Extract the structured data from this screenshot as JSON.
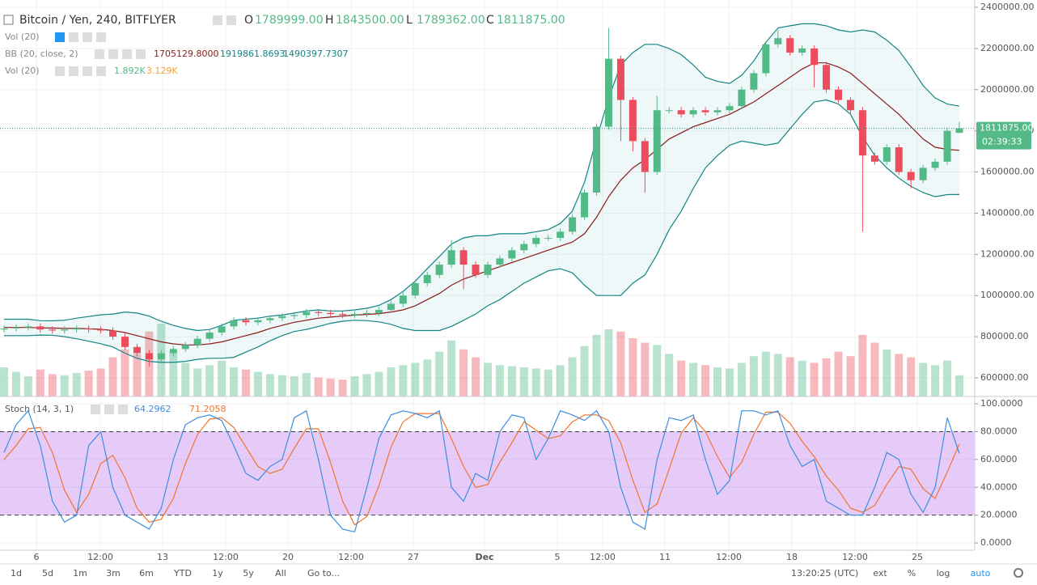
{
  "chart_data": {
    "type": "candlestick",
    "title": "Bitcoin / Yen, 240, BITFLYER",
    "legend": [
      [
        "O",
        "1789999.00"
      ],
      [
        "H",
        "1843500.00"
      ],
      [
        "L",
        "1789362.00"
      ],
      [
        "C",
        "1811875.00"
      ]
    ],
    "indicators": [
      {
        "name": "Vol (20)"
      },
      {
        "name": "BB (20, close, 2)",
        "values": [
          "1705129.8000",
          "1919861.8693",
          "1490397.7307"
        ]
      },
      {
        "name": "Vol (20)",
        "values": [
          "1.892K",
          "3.129K"
        ]
      }
    ],
    "colors": {
      "up": "#53b987",
      "down": "#eb4d5c",
      "bb": "#138484",
      "basis": "#8b1a1a"
    },
    "open": [
      835000,
      840000,
      845000,
      850000,
      835000,
      830000,
      835000,
      840000,
      835000,
      830000,
      800000,
      750000,
      720000,
      690000,
      720000,
      740000,
      760000,
      790000,
      820000,
      850000,
      880000,
      870000,
      880000,
      890000,
      900000,
      905000,
      920000,
      915000,
      910000,
      905000,
      910000,
      915000,
      930000,
      960000,
      1000000,
      1060000,
      1100000,
      1150000,
      1220000,
      1150000,
      1100000,
      1150000,
      1180000,
      1220000,
      1250000,
      1280000,
      1280000,
      1310000,
      1380000,
      1500000,
      1820000,
      2150000,
      1950000,
      1750000,
      1600000,
      1900000,
      1900000,
      1880000,
      1900000,
      1890000,
      1900000,
      1920000,
      2000000,
      2080000,
      2220000,
      2250000,
      2180000,
      2200000,
      2120000,
      2000000,
      1950000,
      1900000,
      1680000,
      1650000,
      1720000,
      1600000,
      1560000,
      1620000,
      1650000,
      1789999
    ],
    "high": [
      855000,
      860000,
      865000,
      865000,
      850000,
      850000,
      855000,
      855000,
      850000,
      845000,
      815000,
      765000,
      735000,
      735000,
      755000,
      775000,
      805000,
      835000,
      865000,
      895000,
      895000,
      895000,
      905000,
      915000,
      920000,
      935000,
      935000,
      930000,
      925000,
      925000,
      930000,
      945000,
      975000,
      1015000,
      1075000,
      1115000,
      1165000,
      1270000,
      1235000,
      1165000,
      1165000,
      1195000,
      1235000,
      1265000,
      1295000,
      1295000,
      1325000,
      1395000,
      1515000,
      1835000,
      2300000,
      2165000,
      1965000,
      1765000,
      1970000,
      1915000,
      1915000,
      1915000,
      1915000,
      1915000,
      1935000,
      2015000,
      2095000,
      2235000,
      2290000,
      2265000,
      2215000,
      2215000,
      2135000,
      2015000,
      1965000,
      1915000,
      1695000,
      1735000,
      1735000,
      1615000,
      1635000,
      1665000,
      1815000,
      1843500
    ],
    "low": [
      820000,
      825000,
      830000,
      820000,
      815000,
      815000,
      820000,
      820000,
      815000,
      785000,
      735000,
      705000,
      655000,
      675000,
      705000,
      725000,
      745000,
      775000,
      805000,
      835000,
      855000,
      855000,
      865000,
      875000,
      885000,
      890000,
      900000,
      895000,
      890000,
      890000,
      895000,
      900000,
      915000,
      945000,
      985000,
      1045000,
      1085000,
      1135000,
      1030000,
      1085000,
      1085000,
      1135000,
      1165000,
      1205000,
      1235000,
      1265000,
      1265000,
      1295000,
      1365000,
      1485000,
      1805000,
      1750000,
      1700000,
      1500000,
      1585000,
      1885000,
      1865000,
      1865000,
      1875000,
      1875000,
      1885000,
      1905000,
      1985000,
      2065000,
      2205000,
      2165000,
      2165000,
      2010000,
      1985000,
      1935000,
      1885000,
      1310000,
      1635000,
      1635000,
      1585000,
      1520000,
      1545000,
      1605000,
      1635000,
      1789362
    ],
    "close": [
      840000,
      845000,
      850000,
      835000,
      830000,
      835000,
      840000,
      835000,
      830000,
      800000,
      750000,
      720000,
      690000,
      720000,
      740000,
      760000,
      790000,
      820000,
      850000,
      880000,
      870000,
      880000,
      890000,
      900000,
      905000,
      920000,
      915000,
      910000,
      905000,
      910000,
      915000,
      930000,
      960000,
      1000000,
      1060000,
      1100000,
      1150000,
      1220000,
      1150000,
      1100000,
      1150000,
      1180000,
      1220000,
      1250000,
      1280000,
      1280000,
      1310000,
      1380000,
      1500000,
      1820000,
      2150000,
      1950000,
      1750000,
      1600000,
      1900000,
      1900000,
      1880000,
      1900000,
      1890000,
      1900000,
      1920000,
      2000000,
      2080000,
      2220000,
      2250000,
      2180000,
      2200000,
      2120000,
      2000000,
      1950000,
      1900000,
      1680000,
      1650000,
      1720000,
      1600000,
      1560000,
      1620000,
      1650000,
      1800000,
      1811875
    ],
    "bb": {
      "upper": [
        885000,
        885000,
        885000,
        878000,
        877000,
        880000,
        890000,
        898000,
        906000,
        910000,
        920000,
        915000,
        900000,
        875000,
        855000,
        840000,
        830000,
        835000,
        855000,
        880000,
        885000,
        890000,
        900000,
        905000,
        915000,
        925000,
        930000,
        925000,
        925000,
        930000,
        938000,
        952000,
        980000,
        1020000,
        1070000,
        1130000,
        1190000,
        1250000,
        1280000,
        1290000,
        1290000,
        1300000,
        1300000,
        1300000,
        1310000,
        1320000,
        1350000,
        1410000,
        1550000,
        1760000,
        1960000,
        2120000,
        2180000,
        2220000,
        2220000,
        2200000,
        2170000,
        2120000,
        2060000,
        2040000,
        2030000,
        2070000,
        2140000,
        2230000,
        2300000,
        2310000,
        2320000,
        2320000,
        2310000,
        2290000,
        2280000,
        2290000,
        2280000,
        2240000,
        2190000,
        2110000,
        2020000,
        1960000,
        1930000,
        1919861.8693
      ],
      "middle": [
        845000,
        845000,
        845000,
        843000,
        842000,
        840000,
        840000,
        838000,
        836000,
        830000,
        820000,
        805000,
        790000,
        775000,
        765000,
        760000,
        760000,
        765000,
        775000,
        790000,
        805000,
        820000,
        840000,
        855000,
        870000,
        880000,
        890000,
        895000,
        900000,
        905000,
        908000,
        912000,
        920000,
        930000,
        950000,
        980000,
        1010000,
        1050000,
        1080000,
        1100000,
        1120000,
        1140000,
        1160000,
        1180000,
        1200000,
        1220000,
        1240000,
        1260000,
        1300000,
        1380000,
        1480000,
        1560000,
        1620000,
        1660000,
        1710000,
        1760000,
        1790000,
        1820000,
        1840000,
        1860000,
        1880000,
        1910000,
        1940000,
        1980000,
        2020000,
        2060000,
        2100000,
        2130000,
        2130000,
        2110000,
        2080000,
        2030000,
        1980000,
        1930000,
        1880000,
        1820000,
        1760000,
        1720000,
        1710000,
        1705129.8
      ],
      "lower": [
        805000,
        805000,
        805000,
        808000,
        807000,
        800000,
        790000,
        778000,
        766000,
        750000,
        720000,
        695000,
        680000,
        675000,
        675000,
        680000,
        690000,
        695000,
        695000,
        700000,
        725000,
        750000,
        780000,
        805000,
        825000,
        835000,
        850000,
        865000,
        875000,
        880000,
        878000,
        872000,
        860000,
        840000,
        830000,
        830000,
        830000,
        850000,
        880000,
        910000,
        950000,
        980000,
        1020000,
        1060000,
        1090000,
        1120000,
        1130000,
        1110000,
        1050000,
        1000000,
        1000000,
        1000000,
        1060000,
        1100000,
        1200000,
        1320000,
        1410000,
        1520000,
        1620000,
        1680000,
        1730000,
        1750000,
        1740000,
        1730000,
        1740000,
        1810000,
        1880000,
        1940000,
        1950000,
        1930000,
        1880000,
        1770000,
        1680000,
        1620000,
        1570000,
        1530000,
        1500000,
        1480000,
        1490000,
        1490397.7307
      ]
    },
    "volume": [
      2600,
      2200,
      1800,
      2400,
      2000,
      1900,
      2100,
      2300,
      2500,
      3500,
      4200,
      3800,
      5800,
      6500,
      4000,
      3000,
      2500,
      2800,
      3200,
      2600,
      2400,
      2200,
      2000,
      1900,
      1800,
      2100,
      1700,
      1600,
      1500,
      1800,
      2000,
      2200,
      2600,
      2800,
      3000,
      3300,
      4000,
      5000,
      4200,
      3500,
      3000,
      2800,
      2700,
      2600,
      2500,
      2400,
      2800,
      3500,
      4500,
      5500,
      6000,
      5800,
      5200,
      4800,
      4600,
      3800,
      3200,
      3000,
      2800,
      2600,
      2500,
      3000,
      3600,
      4000,
      3800,
      3500,
      3200,
      3000,
      3400,
      4000,
      3600,
      5500,
      4800,
      4200,
      3800,
      3500,
      3000,
      2800,
      3200,
      1892
    ],
    "ylim": [
      509600,
      2435400
    ],
    "yticks": [
      {
        "value": 600000,
        "label": "600000.00"
      },
      {
        "value": 800000,
        "label": "800000.00"
      },
      {
        "value": 1000000,
        "label": "1000000.00"
      },
      {
        "value": 1200000,
        "label": "1200000.00"
      },
      {
        "value": 1400000,
        "label": "1400000.00"
      },
      {
        "value": 1600000,
        "label": "1600000.00"
      },
      {
        "value": 1800000,
        "label": "1800000.00"
      },
      {
        "value": 2000000,
        "label": "2000000.00"
      },
      {
        "value": 2200000,
        "label": "2200000.00"
      },
      {
        "value": 2400000,
        "label": "2400000.00"
      }
    ],
    "grid": true,
    "last_price": {
      "value": 1811875,
      "label": "1811875.00",
      "countdown": "02:39:33"
    },
    "x_labels": [
      "6",
      "12:00",
      "13",
      "12:00",
      "20",
      "12:00",
      "27",
      "Dec",
      "5",
      "12:00",
      "11",
      "12:00",
      "18",
      "12:00",
      "25"
    ],
    "stoch": {
      "name": "Stoch (14, 3, 1)",
      "legend": [
        "64.2962",
        "71.2058"
      ],
      "colors": {
        "k": "#3c8ee0",
        "d": "#f0742e",
        "band": "#e6cbf9"
      },
      "k": [
        65,
        85,
        95,
        70,
        30,
        15,
        20,
        70,
        80,
        40,
        20,
        15,
        10,
        25,
        60,
        85,
        90,
        92,
        88,
        70,
        50,
        45,
        55,
        60,
        90,
        95,
        60,
        20,
        10,
        8,
        40,
        75,
        92,
        95,
        93,
        90,
        95,
        40,
        30,
        50,
        45,
        80,
        92,
        90,
        60,
        75,
        95,
        92,
        88,
        95,
        80,
        40,
        15,
        10,
        60,
        90,
        88,
        92,
        60,
        35,
        45,
        95,
        95,
        92,
        95,
        70,
        55,
        60,
        30,
        25,
        20,
        20,
        40,
        65,
        60,
        35,
        22,
        40,
        90,
        64.2962
      ],
      "d": [
        60,
        70,
        82,
        83,
        65,
        38,
        22,
        35,
        57,
        63,
        47,
        25,
        15,
        17,
        32,
        57,
        78,
        89,
        90,
        83,
        69,
        55,
        50,
        53,
        68,
        82,
        82,
        58,
        30,
        13,
        19,
        41,
        69,
        87,
        93,
        93,
        93,
        75,
        55,
        40,
        42,
        58,
        72,
        87,
        81,
        75,
        77,
        87,
        92,
        92,
        88,
        72,
        45,
        22,
        28,
        53,
        79,
        90,
        80,
        62,
        47,
        58,
        78,
        94,
        94,
        86,
        73,
        62,
        48,
        38,
        25,
        22,
        27,
        42,
        55,
        53,
        39,
        32,
        51,
        71.2058
      ],
      "ylim": [
        -5.2,
        104.1
      ],
      "bands": [
        20,
        80
      ],
      "yticks": [
        {
          "value": 0,
          "label": "0.0000"
        },
        {
          "value": 20,
          "label": "20.0000"
        },
        {
          "value": 40,
          "label": "40.0000"
        },
        {
          "value": 60,
          "label": "60.0000"
        },
        {
          "value": 80,
          "label": "80.0000"
        },
        {
          "value": 100,
          "label": "100.0000"
        }
      ]
    },
    "toolbar": [
      "1d",
      "5d",
      "1m",
      "3m",
      "6m",
      "YTD",
      "1y",
      "5y",
      "All",
      "Go to..."
    ],
    "clock": "13:20:25 (UTC)",
    "options": [
      "ext",
      "%",
      "log",
      "auto"
    ]
  }
}
